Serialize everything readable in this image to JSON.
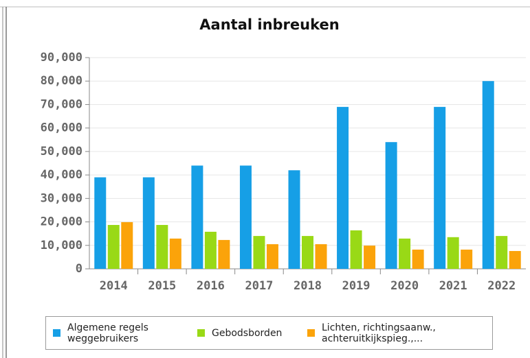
{
  "chart_data": {
    "type": "bar",
    "title": "Aantal inbreuken",
    "categories": [
      "2014",
      "2015",
      "2016",
      "2017",
      "2018",
      "2019",
      "2020",
      "2021",
      "2022"
    ],
    "series": [
      {
        "name": "Algemene regels weggebruikers",
        "color": "#169fe6",
        "values": [
          39000,
          39000,
          44000,
          44000,
          42000,
          69000,
          54000,
          69000,
          80000
        ]
      },
      {
        "name": "Gebodsborden",
        "color": "#99d916",
        "values": [
          18700,
          18700,
          15800,
          14000,
          14000,
          16400,
          12900,
          13500,
          14000
        ]
      },
      {
        "name": "Lichten, richtingsaanw., achteruitkijkspieg.,...",
        "color": "#fba30a",
        "values": [
          19900,
          12900,
          12300,
          10500,
          10500,
          9900,
          8200,
          8200,
          7600
        ]
      }
    ],
    "ylim": [
      0,
      90000
    ],
    "yticks": [
      0,
      {
        "value": 10000,
        "label": "10,000"
      },
      {
        "value": 20000,
        "label": "20,000"
      },
      {
        "value": 30000,
        "label": "30,000"
      },
      {
        "value": 40000,
        "label": "40,000"
      },
      {
        "value": 50000,
        "label": "50,000"
      },
      {
        "value": 60000,
        "label": "60,000"
      },
      {
        "value": 70000,
        "label": "70,000"
      },
      {
        "value": 80000,
        "label": "80,000"
      },
      {
        "value": 90000,
        "label": "90,000"
      }
    ],
    "grid": true,
    "legend": "bottom"
  }
}
